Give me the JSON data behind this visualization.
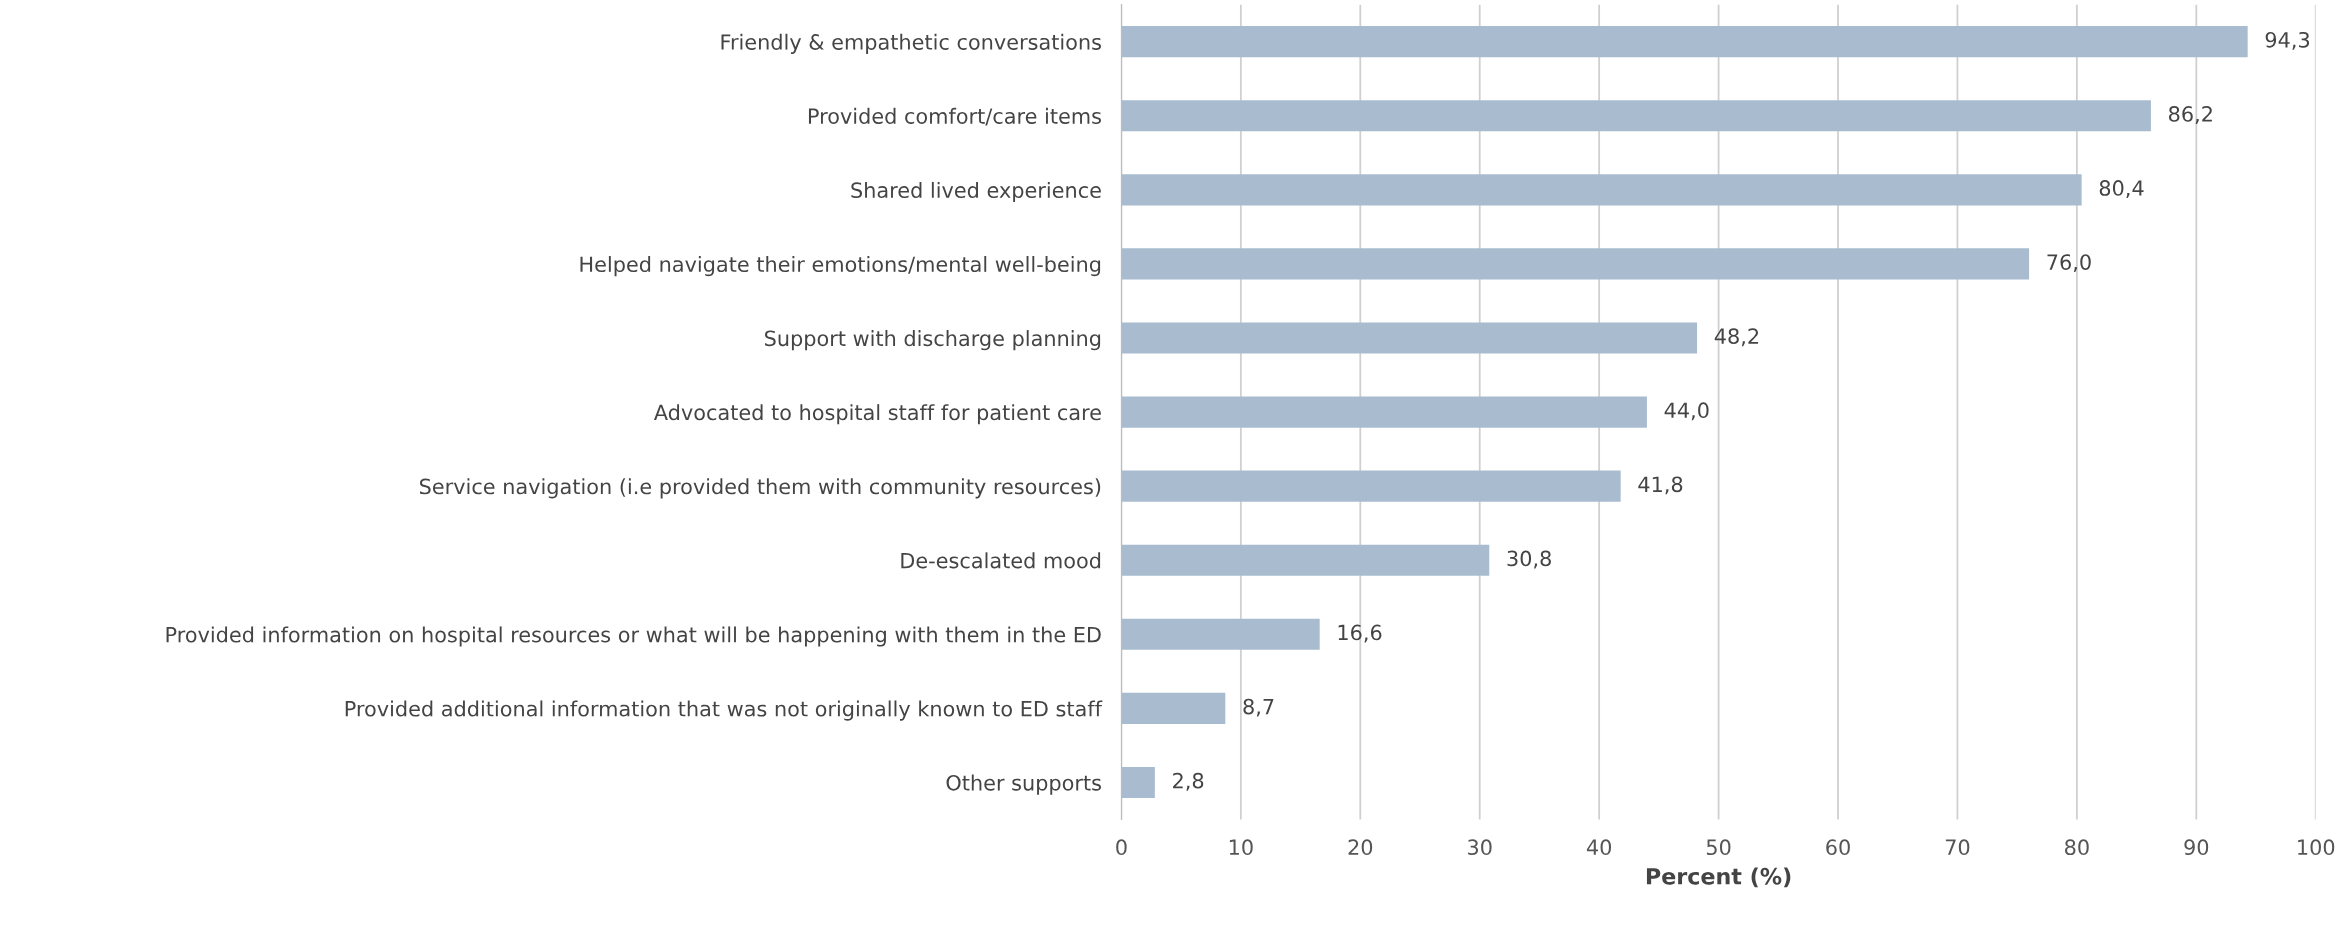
{
  "chart_data": {
    "type": "bar",
    "orientation": "horizontal",
    "xlabel": "Percent (%)",
    "categories": [
      "Friendly & empathetic conversations",
      "Provided comfort/care items",
      "Shared lived experience",
      "Helped navigate their emotions/mental well-being",
      "Support with discharge planning",
      "Advocated to hospital staff for patient care",
      "Service navigation (i.e provided them with community resources)",
      "De-escalated mood",
      "Provided information on hospital resources or what will be happening with them in the ED",
      "Provided additional information that was not originally known to ED staff",
      "Other supports"
    ],
    "values": [
      94.3,
      86.2,
      80.4,
      76.0,
      48.2,
      44.0,
      41.8,
      30.8,
      16.6,
      8.7,
      2.8
    ],
    "value_labels": [
      "94,3",
      "86,2",
      "80,4",
      "76,0",
      "48,2",
      "44,0",
      "41,8",
      "30,8",
      "16,6",
      "8,7",
      "2,8"
    ],
    "color": "#a9bccf",
    "xlim": [
      0,
      100
    ],
    "xticks": [
      0,
      10,
      20,
      30,
      40,
      50,
      60,
      70,
      80,
      90,
      100
    ],
    "grid": "x",
    "legend": false
  }
}
